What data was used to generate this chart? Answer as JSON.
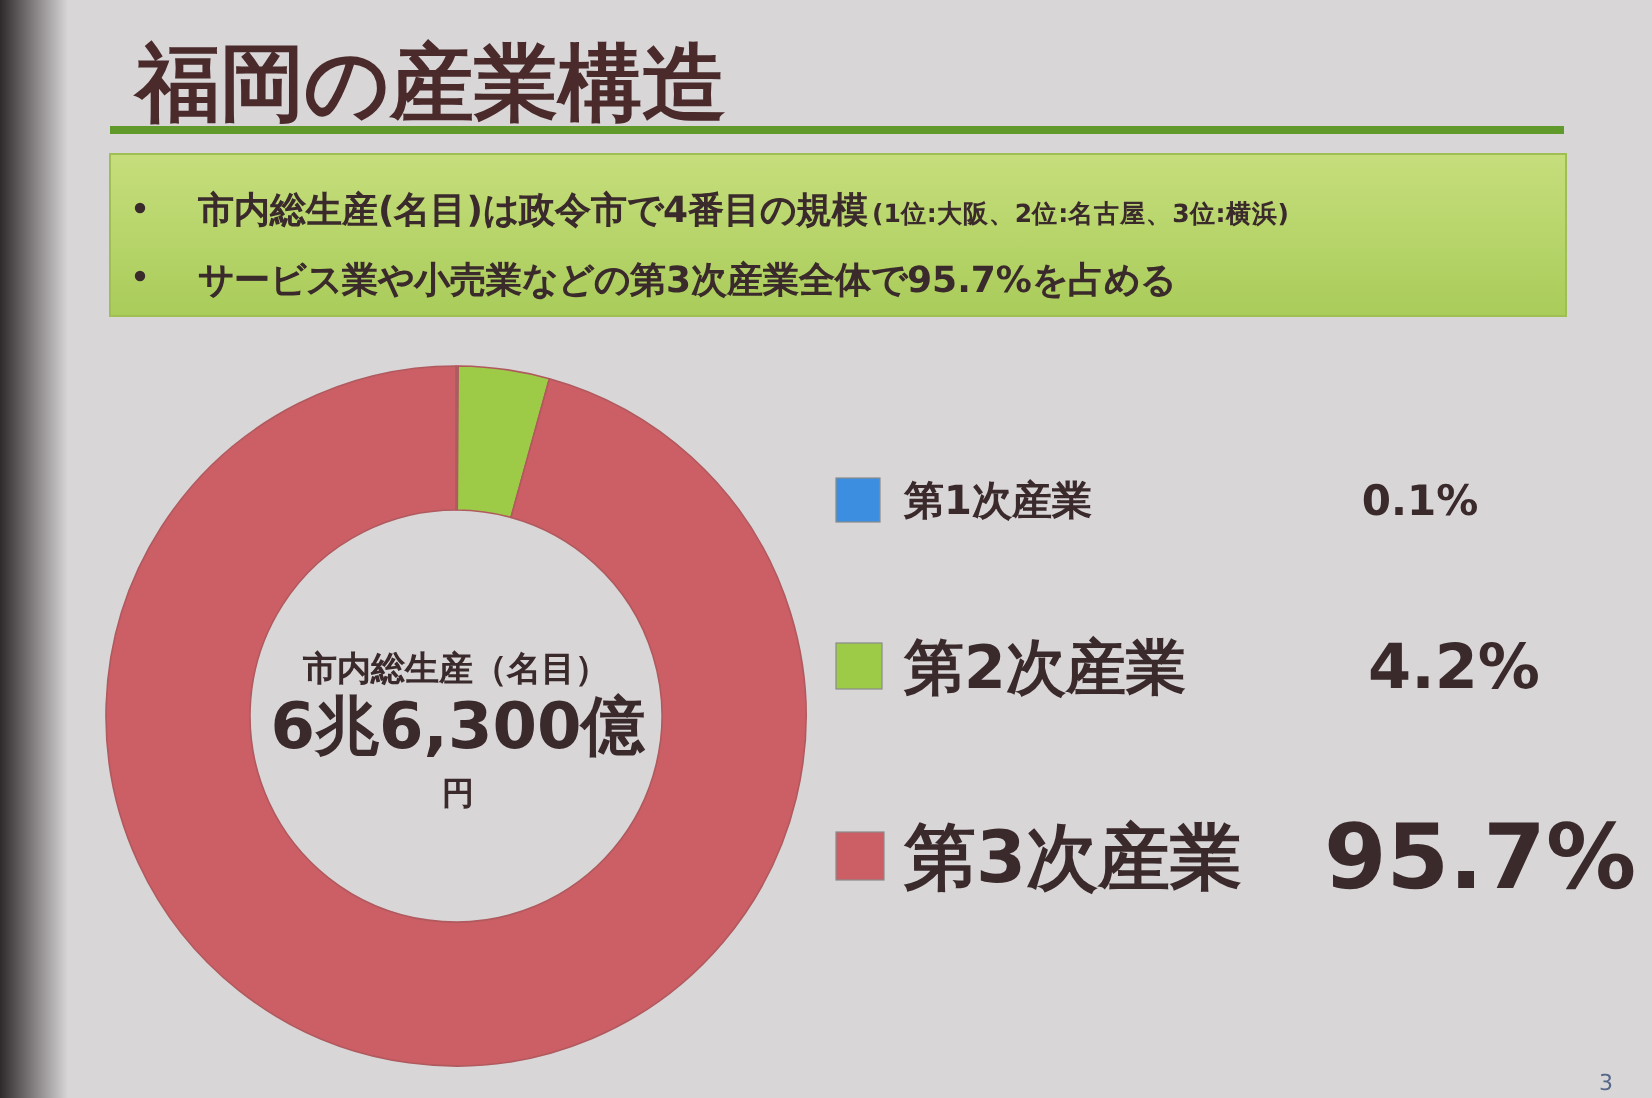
{
  "chart_data": {
    "type": "donut",
    "title": "福岡の産業構造",
    "categories": [
      "第1次産業",
      "第2次産業",
      "第3次産業"
    ],
    "values": [
      0.1,
      4.2,
      95.7
    ],
    "colors": [
      "#3b8ee0",
      "#9dcb48",
      "#cc5e66"
    ],
    "value_labels": [
      "0.1%",
      "4.2%",
      "95.7%"
    ],
    "legend": "right",
    "annotations": [
      "市内総生産(名目)は政令市で4番目の規模",
      "(1位:大阪、2位:名古屋、3位:横浜)",
      "サービス業や小売業などの第3次産業全体で95.7%を占める",
      "市内総生産（名目）",
      "6兆6,300億",
      "円",
      "3"
    ]
  }
}
